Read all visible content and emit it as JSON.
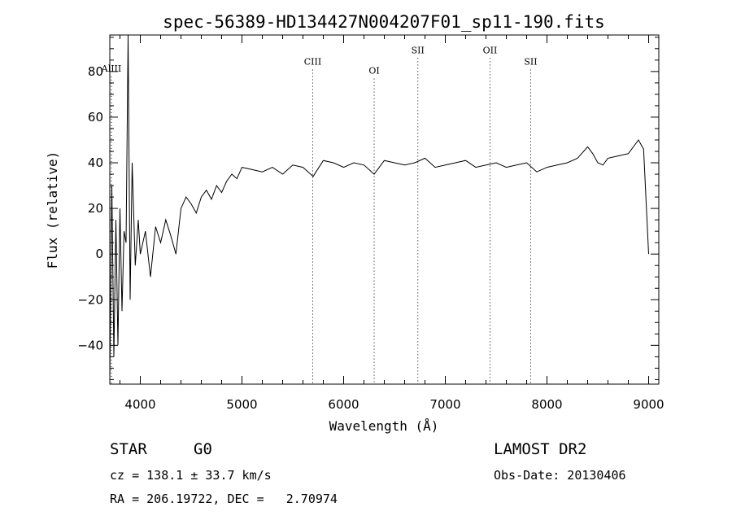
{
  "chart_data": {
    "type": "line",
    "title": "spec-56389-HD134427N004207F01_sp11-190.fits",
    "xlabel": "Wavelength (Å)",
    "ylabel": "Flux (relative)",
    "xlim": [
      3700,
      9100
    ],
    "ylim": [
      -57,
      96
    ],
    "xticks": [
      4000,
      5000,
      6000,
      7000,
      8000,
      9000
    ],
    "yticks": [
      -40,
      -20,
      0,
      20,
      40,
      60,
      80
    ],
    "grid": false,
    "series": [
      {
        "x": [
          3700,
          3720,
          3740,
          3760,
          3780,
          3800,
          3820,
          3840,
          3860,
          3880,
          3900,
          3920,
          3950,
          3980,
          4000,
          4050,
          4100,
          4150,
          4200,
          4250,
          4300,
          4350,
          4400,
          4450,
          4500,
          4550,
          4600,
          4650,
          4700,
          4750,
          4800,
          4850,
          4900,
          4950,
          5000,
          5100,
          5200,
          5300,
          5400,
          5500,
          5600,
          5700,
          5800,
          5900,
          6000,
          6100,
          6200,
          6300,
          6400,
          6500,
          6600,
          6700,
          6800,
          6900,
          7000,
          7100,
          7200,
          7300,
          7400,
          7500,
          7600,
          7700,
          7800,
          7900,
          8000,
          8100,
          8200,
          8300,
          8400,
          8450,
          8500,
          8550,
          8600,
          8700,
          8800,
          8900,
          8950,
          9000
        ],
        "values": [
          -55,
          30,
          -45,
          15,
          -40,
          20,
          -25,
          10,
          5,
          96,
          -20,
          40,
          -5,
          15,
          0,
          10,
          -10,
          12,
          5,
          15,
          8,
          0,
          20,
          25,
          22,
          18,
          25,
          28,
          24,
          30,
          27,
          32,
          35,
          33,
          38,
          37,
          36,
          38,
          35,
          39,
          38,
          34,
          41,
          40,
          38,
          40,
          39,
          35,
          41,
          40,
          39,
          40,
          42,
          38,
          39,
          40,
          41,
          38,
          39,
          40,
          38,
          39,
          40,
          36,
          38,
          39,
          40,
          42,
          47,
          44,
          40,
          39,
          42,
          43,
          44,
          50,
          46,
          0
        ]
      }
    ],
    "line_markers": [
      {
        "label": "AlIII",
        "x": 3716,
        "y": 80
      },
      {
        "label": "CIII",
        "x": 5696,
        "y": 83
      },
      {
        "label": "OI",
        "x": 6300,
        "y": 79
      },
      {
        "label": "SII",
        "x": 6730,
        "y": 88
      },
      {
        "label": "OII",
        "x": 7440,
        "y": 88
      },
      {
        "label": "SII",
        "x": 7840,
        "y": 83
      }
    ]
  },
  "info": {
    "object_class": "STAR",
    "subclass": "G0",
    "survey": "LAMOST DR2",
    "cz": "cz = 138.1 ± 33.7 km/s",
    "obs_date": "Obs-Date: 20130406",
    "radec": "RA = 206.19722, DEC =   2.70974"
  }
}
